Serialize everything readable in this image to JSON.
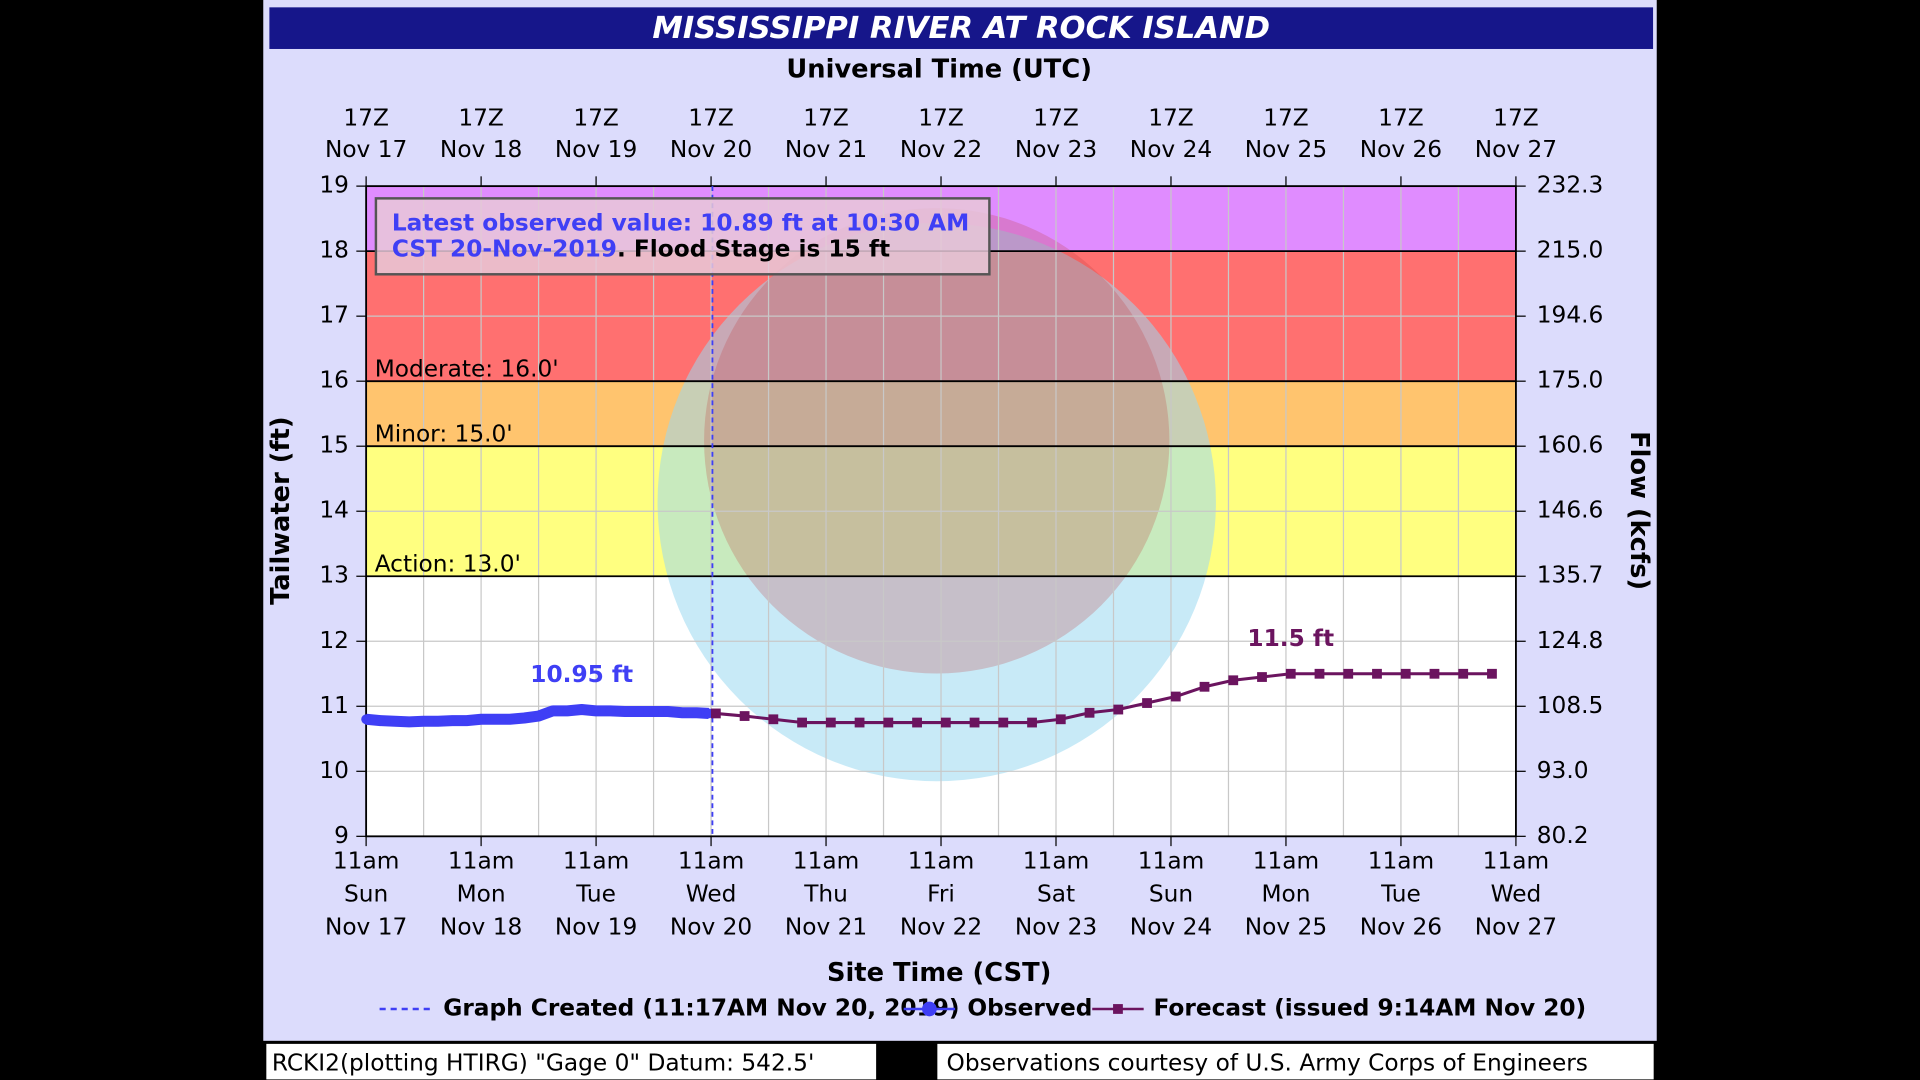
{
  "chart_data": {
    "type": "line",
    "title": "MISSISSIPPI RIVER AT ROCK ISLAND",
    "top_axis_label": "Universal Time (UTC)",
    "x_label": "Site Time (CST)",
    "y_label": "Tailwater (ft)",
    "y2_label": "Flow (kcfs)",
    "xlim": [
      "Nov 17 11:00",
      "Nov 27 11:00"
    ],
    "xticks": [
      {
        "value": "Nov 17 11:00",
        "label": "11am",
        "weekday": "Sun",
        "date": "Nov 17"
      },
      {
        "value": "Nov 18 11:00",
        "label": "11am",
        "weekday": "Mon",
        "date": "Nov 18"
      },
      {
        "value": "Nov 19 11:00",
        "label": "11am",
        "weekday": "Tue",
        "date": "Nov 19"
      },
      {
        "value": "Nov 20 11:00",
        "label": "11am",
        "weekday": "Wed",
        "date": "Nov 20"
      },
      {
        "value": "Nov 21 11:00",
        "label": "11am",
        "weekday": "Thu",
        "date": "Nov 21"
      },
      {
        "value": "Nov 22 11:00",
        "label": "11am",
        "weekday": "Fri",
        "date": "Nov 22"
      },
      {
        "value": "Nov 23 11:00",
        "label": "11am",
        "weekday": "Sat",
        "date": "Nov 23"
      },
      {
        "value": "Nov 24 11:00",
        "label": "11am",
        "weekday": "Sun",
        "date": "Nov 24"
      },
      {
        "value": "Nov 25 11:00",
        "label": "11am",
        "weekday": "Mon",
        "date": "Nov 25"
      },
      {
        "value": "Nov 26 11:00",
        "label": "11am",
        "weekday": "Tue",
        "date": "Nov 26"
      },
      {
        "value": "Nov 27 11:00",
        "label": "11am",
        "weekday": "Wed",
        "date": "Nov 27"
      }
    ],
    "x2ticks": [
      {
        "value": "Nov 17 11:00",
        "label": "17Z",
        "date": "Nov 17"
      },
      {
        "value": "Nov 18 11:00",
        "label": "17Z",
        "date": "Nov 18"
      },
      {
        "value": "Nov 19 11:00",
        "label": "17Z",
        "date": "Nov 19"
      },
      {
        "value": "Nov 20 11:00",
        "label": "17Z",
        "date": "Nov 20"
      },
      {
        "value": "Nov 21 11:00",
        "label": "17Z",
        "date": "Nov 21"
      },
      {
        "value": "Nov 22 11:00",
        "label": "17Z",
        "date": "Nov 22"
      },
      {
        "value": "Nov 23 11:00",
        "label": "17Z",
        "date": "Nov 23"
      },
      {
        "value": "Nov 24 11:00",
        "label": "17Z",
        "date": "Nov 24"
      },
      {
        "value": "Nov 25 11:00",
        "label": "17Z",
        "date": "Nov 25"
      },
      {
        "value": "Nov 26 11:00",
        "label": "17Z",
        "date": "Nov 26"
      },
      {
        "value": "Nov 27 11:00",
        "label": "17Z",
        "date": "Nov 27"
      }
    ],
    "ylim": [
      9,
      19
    ],
    "yticks": [
      9,
      10,
      11,
      12,
      13,
      14,
      15,
      16,
      17,
      18,
      19
    ],
    "y2lim": [
      80.2,
      232.3
    ],
    "y2ticks": [
      80.2,
      {
        "value": 93,
        "label": "93.0"
      },
      108.5,
      124.8,
      135.7,
      146.6,
      160.6,
      {
        "value": 175,
        "label": "175.0"
      },
      194.6,
      {
        "value": 215,
        "label": "215.0"
      },
      232.3
    ],
    "grid": true,
    "thresholds": [
      {
        "label": "Action: 13.0'",
        "value": 13,
        "color": "#ffff80"
      },
      {
        "label": "Minor: 15.0'",
        "value": 15,
        "color": "#ffc46e"
      },
      {
        "label": "Moderate: 16.0'",
        "value": 16,
        "color": "#ff7070"
      },
      {
        "value": 18,
        "color": "#e08cff"
      }
    ],
    "series": [
      {
        "name": "Observed",
        "color": "#3f3ff5",
        "x": [
          "Nov 17 11:00",
          "Nov 17 14:00",
          "Nov 17 17:00",
          "Nov 17 20:00",
          "Nov 17 23:00",
          "Nov 18 02:00",
          "Nov 18 05:00",
          "Nov 18 08:00",
          "Nov 18 11:00",
          "Nov 18 14:00",
          "Nov 18 17:00",
          "Nov 18 20:00",
          "Nov 18 23:00",
          "Nov 19 02:00",
          "Nov 19 05:00",
          "Nov 19 08:00",
          "Nov 19 11:00",
          "Nov 19 14:00",
          "Nov 19 17:00",
          "Nov 19 20:00",
          "Nov 19 23:00",
          "Nov 20 02:00",
          "Nov 20 05:00",
          "Nov 20 08:00",
          "Nov 20 10:30"
        ],
        "values": [
          10.8,
          10.78,
          10.77,
          10.76,
          10.77,
          10.77,
          10.78,
          10.78,
          10.8,
          10.8,
          10.8,
          10.82,
          10.85,
          10.93,
          10.93,
          10.95,
          10.93,
          10.93,
          10.92,
          10.92,
          10.92,
          10.92,
          10.9,
          10.9,
          10.89
        ]
      },
      {
        "name": "Forecast (issued 9:14AM Nov 20)",
        "color": "#6b145f",
        "x": [
          "Nov 20 12:00",
          "Nov 20 18:00",
          "Nov 21 00:00",
          "Nov 21 06:00",
          "Nov 21 12:00",
          "Nov 21 18:00",
          "Nov 22 00:00",
          "Nov 22 06:00",
          "Nov 22 12:00",
          "Nov 22 18:00",
          "Nov 23 00:00",
          "Nov 23 06:00",
          "Nov 23 12:00",
          "Nov 23 18:00",
          "Nov 24 00:00",
          "Nov 24 06:00",
          "Nov 24 12:00",
          "Nov 24 18:00",
          "Nov 25 00:00",
          "Nov 25 06:00",
          "Nov 25 12:00",
          "Nov 25 18:00",
          "Nov 26 00:00",
          "Nov 26 06:00",
          "Nov 26 12:00",
          "Nov 26 18:00",
          "Nov 27 00:00",
          "Nov 27 06:00"
        ],
        "values": [
          10.89,
          10.85,
          10.8,
          10.75,
          10.75,
          10.75,
          10.75,
          10.75,
          10.75,
          10.75,
          10.75,
          10.75,
          10.8,
          10.9,
          10.95,
          11.05,
          11.15,
          11.3,
          11.4,
          11.45,
          11.5,
          11.5,
          11.5,
          11.5,
          11.5,
          11.5,
          11.5,
          11.5
        ]
      }
    ],
    "annotations": [
      {
        "text": "10.95 ft",
        "x": "Nov 19 08:00",
        "value": 10.95,
        "color": "#3f3ff5"
      },
      {
        "text": "11.5 ft",
        "x": "Nov 25 12:00",
        "value": 11.5,
        "color": "#6b145f"
      }
    ],
    "graph_created": {
      "label": "Graph Created (11:17AM Nov 20, 2019)",
      "x": "Nov 20 11:17",
      "color": "#3f3ff5"
    },
    "info_box": {
      "line1": "Latest observed value: 10.89 ft at 10:30 AM",
      "line2": "CST 20-Nov-2019",
      "flood_stage": ". Flood Stage is 15 ft"
    },
    "footer_left": "RCKI2(plotting HTIRG) \"Gage 0\" Datum: 542.5'",
    "footer_right": "Observations courtesy of U.S. Army Corps of Engineers"
  }
}
